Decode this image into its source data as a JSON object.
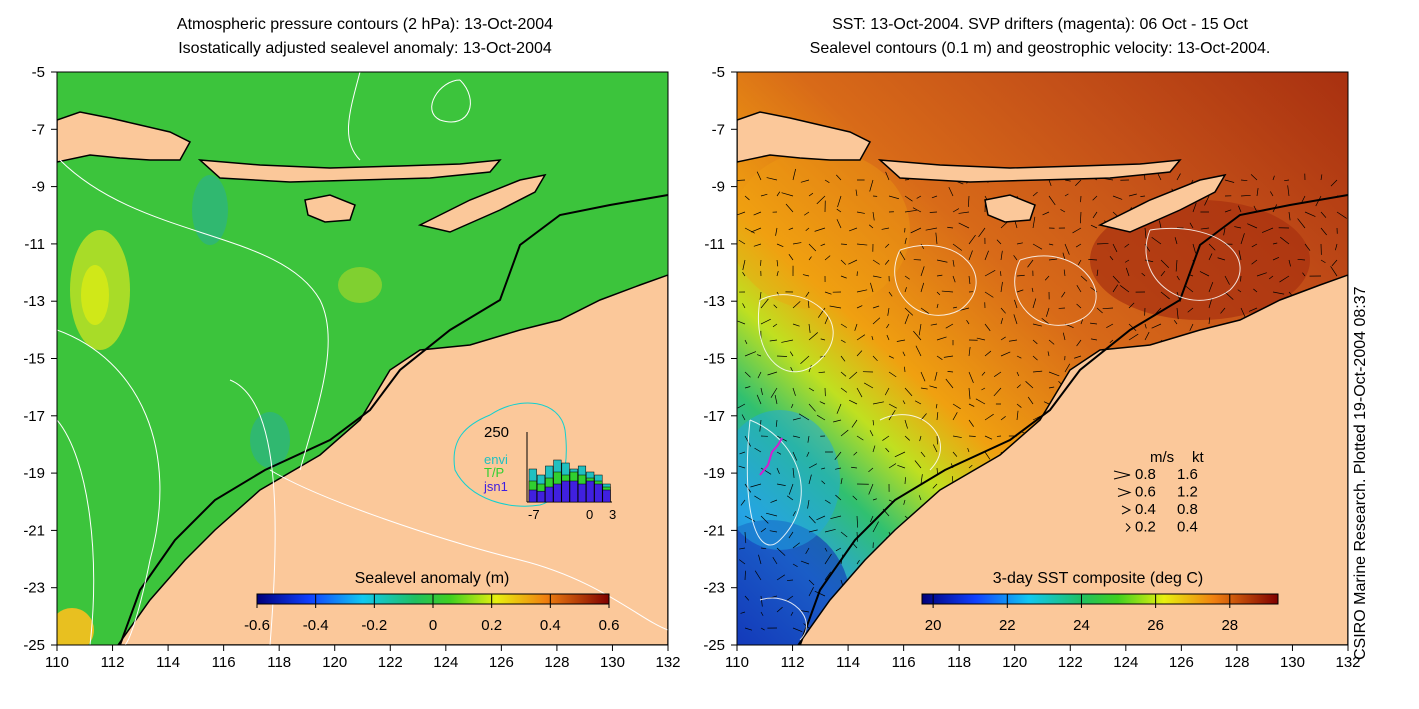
{
  "left_panel": {
    "title_line1": "Atmospheric pressure contours (2 hPa): 13-Oct-2004",
    "title_line2": "Isostatically adjusted sealevel anomaly: 13-Oct-2004",
    "colorbar": {
      "label": "Sealevel anomaly (m)",
      "ticks": [
        "-0.6",
        "-0.4",
        "-0.2",
        "0",
        "0.2",
        "0.4",
        "0.6"
      ],
      "range": [
        -0.6,
        0.6
      ]
    },
    "inset": {
      "y_tick": "250",
      "legend": [
        "envi",
        "T/P",
        "jsn1"
      ],
      "x_ticks": [
        "-7",
        "0",
        "3"
      ],
      "legend_colors": [
        "#20c0c0",
        "#30d030",
        "#4020e0"
      ]
    }
  },
  "right_panel": {
    "title_line1": "SST: 13-Oct-2004. SVP drifters (magenta): 06 Oct - 15 Oct",
    "title_line2": "Sealevel contours (0.1 m) and geostrophic velocity: 13-Oct-2004.",
    "colorbar": {
      "label": "3-day SST composite (deg C)",
      "ticks": [
        "20",
        "22",
        "24",
        "26",
        "28"
      ],
      "range": [
        19.7,
        29.3
      ]
    },
    "velocity_key": {
      "header_ms": "m/s",
      "header_kt": "kt",
      "rows": [
        {
          "ms": "0.8",
          "kt": "1.6"
        },
        {
          "ms": "0.6",
          "kt": "1.2"
        },
        {
          "ms": "0.4",
          "kt": "0.8"
        },
        {
          "ms": "0.2",
          "kt": "0.4"
        }
      ]
    }
  },
  "axes": {
    "x_ticks": [
      "110",
      "112",
      "114",
      "116",
      "118",
      "120",
      "122",
      "124",
      "126",
      "128",
      "130",
      "132"
    ],
    "y_ticks": [
      "-5",
      "-7",
      "-9",
      "-11",
      "-13",
      "-15",
      "-17",
      "-19",
      "-21",
      "-23",
      "-25"
    ],
    "lon_range": [
      110,
      132
    ],
    "lat_range": [
      -25,
      -5
    ]
  },
  "credit": "CSIRO Marine Research. Plotted 19-Oct-2004 08:37",
  "colors": {
    "land": "#fbc89a",
    "ocean_anomaly": "#3cc43c",
    "sst_warm": "#c4501a",
    "sst_cool": "#2a90e0",
    "drifter": "#d020d0"
  }
}
